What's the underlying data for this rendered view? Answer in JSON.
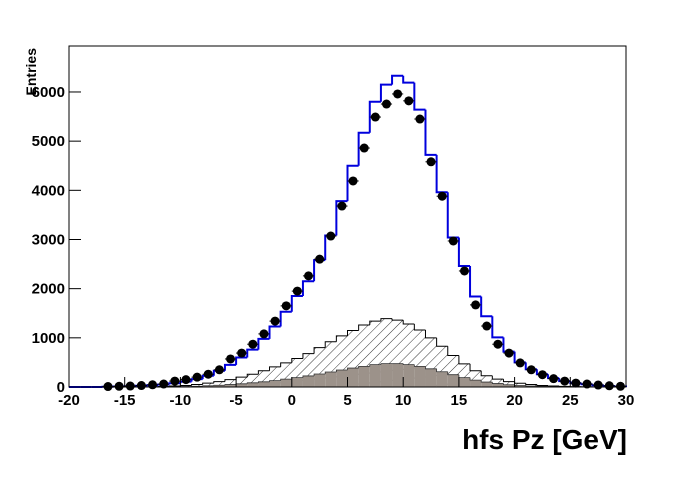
{
  "chart_data": {
    "type": "histogram",
    "xlabel": "hfs Pz [GeV]",
    "ylabel": "Entries",
    "bins": [
      -20,
      -19,
      -18,
      -17,
      -16,
      -15,
      -14,
      -13,
      -12,
      -11,
      -10,
      -9,
      -8,
      -7,
      -6,
      -5,
      -4,
      -3,
      -2,
      -1,
      0,
      1,
      2,
      3,
      4,
      5,
      6,
      7,
      8,
      9,
      10,
      11,
      12,
      13,
      14,
      15,
      16,
      17,
      18,
      19,
      20,
      21,
      22,
      23,
      24,
      25,
      26,
      27,
      28,
      29,
      30
    ],
    "xlim": [
      -20,
      30
    ],
    "xticks": [
      -20,
      -15,
      -10,
      -5,
      0,
      5,
      10,
      15,
      20,
      25,
      30
    ],
    "ylim": [
      0,
      6935
    ],
    "yticks": [
      0,
      1000,
      2000,
      3000,
      4000,
      5000,
      6000
    ],
    "series": [
      {
        "style": "hatch",
        "color": "#000000",
        "values": [
          0,
          0,
          0,
          0,
          0,
          0,
          0,
          5,
          10,
          20,
          30,
          50,
          80,
          110,
          150,
          200,
          260,
          330,
          410,
          490,
          580,
          680,
          800,
          920,
          1040,
          1150,
          1260,
          1340,
          1390,
          1360,
          1280,
          1160,
          1000,
          830,
          640,
          470,
          330,
          230,
          160,
          110,
          75,
          50,
          30,
          20,
          12,
          8,
          5,
          3,
          2,
          1
        ]
      },
      {
        "style": "fill",
        "color": "#9c928a",
        "values": [
          0,
          0,
          0,
          0,
          0,
          0,
          0,
          0,
          0,
          5,
          10,
          15,
          25,
          35,
          50,
          65,
          85,
          105,
          130,
          160,
          190,
          225,
          265,
          305,
          345,
          385,
          420,
          455,
          475,
          475,
          455,
          420,
          370,
          310,
          250,
          190,
          140,
          100,
          70,
          45,
          30,
          20,
          12,
          8,
          5,
          2,
          1,
          0,
          0,
          0
        ]
      },
      {
        "style": "step",
        "color": "#0000dd",
        "values": [
          0,
          0,
          0,
          5,
          10,
          15,
          25,
          35,
          50,
          75,
          110,
          160,
          230,
          330,
          450,
          600,
          760,
          980,
          1230,
          1530,
          1850,
          2150,
          2580,
          3080,
          3780,
          4500,
          5170,
          5800,
          6150,
          6330,
          6190,
          5640,
          4720,
          3960,
          3040,
          2460,
          1840,
          1440,
          1010,
          720,
          500,
          360,
          260,
          180,
          120,
          80,
          55,
          35,
          20,
          10
        ]
      },
      {
        "style": "points",
        "color": "#000000",
        "values": [
          null,
          null,
          null,
          10,
          15,
          20,
          30,
          45,
          60,
          120,
          150,
          200,
          260,
          350,
          570,
          690,
          870,
          1080,
          1340,
          1650,
          1950,
          2260,
          2600,
          3070,
          3680,
          4190,
          4860,
          5490,
          5755,
          5960,
          5820,
          5450,
          4580,
          3880,
          2970,
          2360,
          1670,
          1240,
          870,
          690,
          490,
          350,
          250,
          170,
          120,
          80,
          60,
          40,
          25,
          15
        ]
      }
    ]
  }
}
